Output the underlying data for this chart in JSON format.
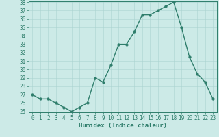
{
  "x": [
    0,
    1,
    2,
    3,
    4,
    5,
    6,
    7,
    8,
    9,
    10,
    11,
    12,
    13,
    14,
    15,
    16,
    17,
    18,
    19,
    20,
    21,
    22,
    23
  ],
  "y": [
    27,
    26.5,
    26.5,
    26,
    25.5,
    25,
    25.5,
    26,
    29,
    28.5,
    30.5,
    33,
    33,
    34.5,
    36.5,
    36.5,
    37,
    37.5,
    38,
    35,
    31.5,
    29.5,
    28.5,
    26.5
  ],
  "line_color": "#2e7d6b",
  "bg_color": "#cceae7",
  "grid_color": "#aad4d0",
  "xlabel": "Humidex (Indice chaleur)",
  "ylim": [
    25,
    38
  ],
  "xlim": [
    -0.5,
    23.5
  ],
  "yticks": [
    25,
    26,
    27,
    28,
    29,
    30,
    31,
    32,
    33,
    34,
    35,
    36,
    37,
    38
  ],
  "xticks": [
    0,
    1,
    2,
    3,
    4,
    5,
    6,
    7,
    8,
    9,
    10,
    11,
    12,
    13,
    14,
    15,
    16,
    17,
    18,
    19,
    20,
    21,
    22,
    23
  ],
  "marker_size": 2.5,
  "linewidth": 1.0,
  "tick_fontsize": 5.5,
  "xlabel_fontsize": 6.5
}
